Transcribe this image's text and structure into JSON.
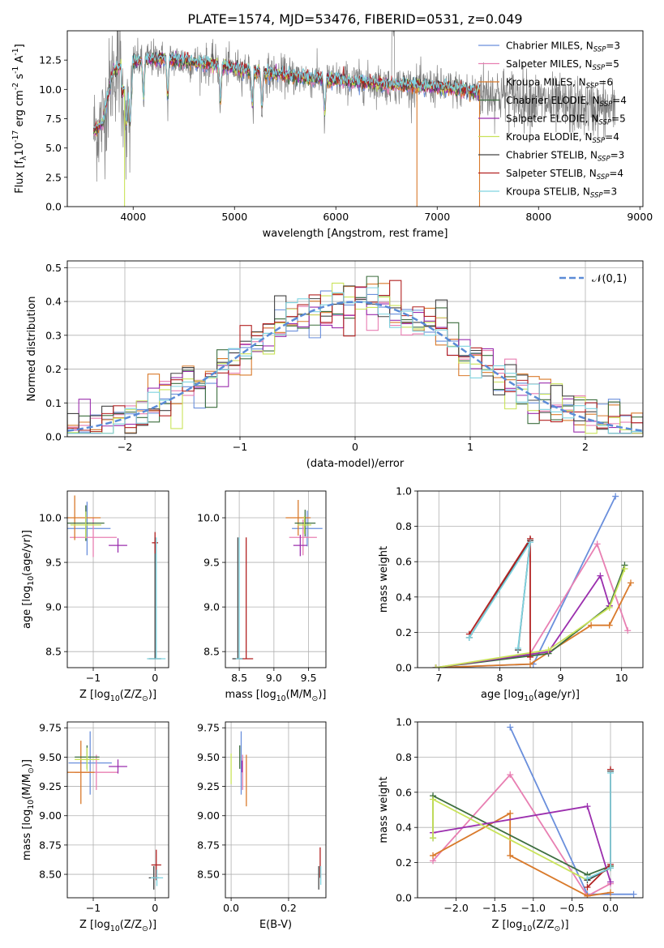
{
  "figure": {
    "title": "PLATE=1574, MJD=53476, FIBERID=0531, z=0.049"
  },
  "models": [
    {
      "name": "Chabrier MILES",
      "nssp": "3",
      "color": "#6a8fdc"
    },
    {
      "name": "Salpeter MILES",
      "nssp": "5",
      "color": "#e87fb2"
    },
    {
      "name": "Kroupa MILES",
      "nssp": "6",
      "color": "#d97a2b"
    },
    {
      "name": "Chabrier ELODIE",
      "nssp": "4",
      "color": "#3d6e3f"
    },
    {
      "name": "Salpeter ELODIE",
      "nssp": "5",
      "color": "#9b2fae"
    },
    {
      "name": "Kroupa ELODIE",
      "nssp": "4",
      "color": "#c9e35a"
    },
    {
      "name": "Chabrier STELIB",
      "nssp": "3",
      "color": "#444444"
    },
    {
      "name": "Salpeter STELIB",
      "nssp": "4",
      "color": "#b22222"
    },
    {
      "name": "Kroupa STELIB",
      "nssp": "3",
      "color": "#7fd3e0"
    }
  ],
  "chart_data": [
    {
      "id": "spectrum",
      "type": "line",
      "xlabel": "wavelength [Angstrom, rest frame]",
      "ylabel": "Flux [f$_\\lambda$10$^{-17}$ erg cm$^{-2}$ s$^{-1}$ A$^{-1}$]",
      "xlim": [
        3350,
        9030
      ],
      "ylim": [
        0,
        15
      ],
      "xticks": [
        4000,
        5000,
        6000,
        7000,
        8000,
        9000
      ],
      "yticks": [
        0.0,
        2.5,
        5.0,
        7.5,
        10.0,
        12.5
      ],
      "grid": false,
      "legend": "top-right",
      "data_color": "#808080",
      "continuum": {
        "x": [
          3610,
          3700,
          3800,
          3900,
          4000,
          4100,
          4200,
          4400,
          4600,
          4800,
          5000,
          5200,
          5500,
          5800,
          6000,
          6300,
          6600,
          6800,
          7000,
          7200,
          7400,
          7600,
          7800,
          8000,
          8200,
          8500,
          8760
        ],
        "y": [
          6.4,
          7.2,
          11.5,
          12.0,
          12.3,
          12.5,
          12.6,
          12.5,
          12.3,
          12.1,
          11.8,
          11.5,
          11.2,
          10.9,
          10.8,
          10.6,
          10.4,
          10.3,
          10.2,
          10.0,
          9.8,
          9.6,
          9.3,
          9.0,
          8.6,
          8.4,
          8.3
        ]
      },
      "model_end": 7420
    },
    {
      "id": "residuals",
      "type": "histogram",
      "xlabel": "(data-model)/error",
      "ylabel": "Normed distribution",
      "xlim": [
        -2.5,
        2.5
      ],
      "ylim": [
        0,
        0.52
      ],
      "xticks": [
        -2,
        -1,
        0,
        1,
        2
      ],
      "yticks": [
        0.0,
        0.1,
        0.2,
        0.3,
        0.4,
        0.5
      ],
      "grid": true,
      "legend": "top-right",
      "reference": {
        "label": "$\\mathcal{N}(0,1)$",
        "color": "#5b8bd6",
        "mean": 0,
        "sigma": 1
      },
      "bin_width": 0.1
    },
    {
      "id": "age_vs_Z",
      "type": "errorbar",
      "xlabel": "Z [log$_{10}$($Z/Z_\\odot$)]",
      "ylabel": "age  [log$_{10}$($age/yr$)]",
      "xlim": [
        -1.42,
        0.22
      ],
      "ylim": [
        8.32,
        10.3
      ],
      "xticks": [
        -1,
        0
      ],
      "yticks": [
        8.5,
        9.0,
        9.5,
        10.0
      ],
      "grid": true,
      "points": [
        {
          "model": 0,
          "x": -1.1,
          "y": 9.88,
          "xerr": 0.38,
          "yerr": 0.3
        },
        {
          "model": 1,
          "x": -1.0,
          "y": 9.78,
          "xerr": 0.38,
          "yerr": 0.22
        },
        {
          "model": 2,
          "x": -1.3,
          "y": 10.0,
          "xerr": 0.42,
          "yerr": 0.25
        },
        {
          "model": 3,
          "x": -1.12,
          "y": 9.94,
          "xerr": 0.3,
          "yerr": 0.2
        },
        {
          "model": 4,
          "x": -0.6,
          "y": 9.69,
          "xerr": 0.15,
          "yerr": 0.08
        },
        {
          "model": 5,
          "x": -1.12,
          "y": 9.92,
          "xerr": 0.25,
          "yerr": 0.15
        },
        {
          "model": 6,
          "x": 0.0,
          "y": 8.42,
          "xerr": 0.1,
          "yerr": 0.0
        },
        {
          "model": 7,
          "x": 0.0,
          "y": 9.72,
          "xerr": 0.05,
          "yerr": 0.12
        },
        {
          "model": 8,
          "x": 0.02,
          "y": 8.42,
          "xerr": 0.15,
          "yerr": 0.0
        }
      ]
    },
    {
      "id": "age_vs_mass",
      "type": "errorbar",
      "xlabel": "mass [log$_{10}$($M/M_\\odot$)]",
      "ylabel": "",
      "xlim": [
        8.3,
        9.75
      ],
      "ylim": [
        8.32,
        10.3
      ],
      "xticks": [
        8.5,
        9.0,
        9.5
      ],
      "yticks": [
        8.5,
        9.0,
        9.5,
        10.0
      ],
      "grid": true,
      "points": [
        {
          "model": 0,
          "x": 9.48,
          "y": 9.88,
          "xerr": 0.22,
          "yerr": 0.2
        },
        {
          "model": 1,
          "x": 9.42,
          "y": 9.78,
          "xerr": 0.2,
          "yerr": 0.2
        },
        {
          "model": 2,
          "x": 9.35,
          "y": 10.0,
          "xerr": 0.18,
          "yerr": 0.2
        },
        {
          "model": 3,
          "x": 9.45,
          "y": 9.94,
          "xerr": 0.15,
          "yerr": 0.15
        },
        {
          "model": 4,
          "x": 9.38,
          "y": 9.69,
          "xerr": 0.1,
          "yerr": 0.12
        },
        {
          "model": 5,
          "x": 9.44,
          "y": 9.92,
          "xerr": 0.1,
          "yerr": 0.1
        },
        {
          "model": 6,
          "x": 8.48,
          "y": 8.42,
          "xerr": 0.08,
          "yerr": 0.0
        },
        {
          "model": 7,
          "x": 8.6,
          "y": 8.42,
          "xerr": 0.1,
          "yerr": 0.0
        },
        {
          "model": 8,
          "x": 8.5,
          "y": 8.42,
          "xerr": 0.05,
          "yerr": 0.0
        }
      ]
    },
    {
      "id": "weight_vs_age",
      "type": "line",
      "xlabel": "age  [log$_{10}$($age/yr$)]",
      "ylabel": "mass weight",
      "xlim": [
        6.65,
        10.35
      ],
      "ylim": [
        0,
        1.0
      ],
      "xticks": [
        7,
        8,
        9,
        10
      ],
      "yticks": [
        0.0,
        0.2,
        0.4,
        0.6,
        0.8,
        1.0
      ],
      "grid": true,
      "series": [
        {
          "model": 0,
          "x": [
            6.95,
            8.55,
            9.9
          ],
          "y": [
            0.0,
            0.02,
            0.97
          ]
        },
        {
          "model": 1,
          "x": [
            6.95,
            8.5,
            9.6,
            10.1
          ],
          "y": [
            0.0,
            0.08,
            0.7,
            0.21
          ]
        },
        {
          "model": 2,
          "x": [
            6.95,
            8.5,
            9.5,
            9.8,
            10.15
          ],
          "y": [
            0.0,
            0.02,
            0.24,
            0.24,
            0.48
          ]
        },
        {
          "model": 3,
          "x": [
            6.95,
            8.8,
            9.8,
            10.05
          ],
          "y": [
            0.0,
            0.08,
            0.35,
            0.58
          ]
        },
        {
          "model": 4,
          "x": [
            6.95,
            8.8,
            9.65,
            9.8
          ],
          "y": [
            0.0,
            0.09,
            0.52,
            0.35
          ]
        },
        {
          "model": 5,
          "x": [
            6.95,
            8.8,
            9.8,
            10.05
          ],
          "y": [
            0.0,
            0.1,
            0.34,
            0.56
          ]
        },
        {
          "model": 6,
          "x": [
            7.5,
            8.5,
            8.3
          ],
          "y": [
            0.17,
            0.72,
            0.1
          ]
        },
        {
          "model": 7,
          "x": [
            7.5,
            8.5,
            8.5
          ],
          "y": [
            0.19,
            0.73,
            0.06
          ]
        },
        {
          "model": 8,
          "x": [
            7.5,
            8.5,
            8.3
          ],
          "y": [
            0.17,
            0.71,
            0.11
          ]
        }
      ]
    },
    {
      "id": "mass_vs_Z",
      "type": "errorbar",
      "xlabel": "Z [log$_{10}$($Z/Z_\\odot$)]",
      "ylabel": "mass [log$_{10}$($M/M_\\odot$)]",
      "xlim": [
        -1.42,
        0.22
      ],
      "ylim": [
        8.3,
        9.8
      ],
      "xticks": [
        -1,
        0
      ],
      "yticks": [
        8.5,
        8.75,
        9.0,
        9.25,
        9.5,
        9.75
      ],
      "grid": true,
      "points": [
        {
          "model": 0,
          "x": -1.05,
          "y": 9.45,
          "xerr": 0.35,
          "yerr": 0.27
        },
        {
          "model": 1,
          "x": -0.95,
          "y": 9.37,
          "xerr": 0.35,
          "yerr": 0.15
        },
        {
          "model": 2,
          "x": -1.2,
          "y": 9.37,
          "xerr": 0.22,
          "yerr": 0.27
        },
        {
          "model": 3,
          "x": -1.1,
          "y": 9.5,
          "xerr": 0.2,
          "yerr": 0.1
        },
        {
          "model": 4,
          "x": -0.6,
          "y": 9.42,
          "xerr": 0.15,
          "yerr": 0.06
        },
        {
          "model": 5,
          "x": -1.1,
          "y": 9.48,
          "xerr": 0.2,
          "yerr": 0.1
        },
        {
          "model": 6,
          "x": -0.02,
          "y": 8.47,
          "xerr": 0.08,
          "yerr": 0.1
        },
        {
          "model": 7,
          "x": 0.02,
          "y": 8.58,
          "xerr": 0.08,
          "yerr": 0.13
        },
        {
          "model": 8,
          "x": 0.03,
          "y": 8.47,
          "xerr": 0.1,
          "yerr": 0.07
        }
      ]
    },
    {
      "id": "mass_vs_ebv",
      "type": "errorbar",
      "xlabel": "E(B-V)",
      "ylabel": "",
      "xlim": [
        -0.02,
        0.33
      ],
      "ylim": [
        8.3,
        9.8
      ],
      "xticks": [
        0.0,
        0.2
      ],
      "yticks": [
        8.5,
        8.75,
        9.0,
        9.25,
        9.5,
        9.75
      ],
      "grid": true,
      "points": [
        {
          "model": 0,
          "x": 0.035,
          "y": 9.45,
          "xerr": 0.0,
          "yerr": 0.27
        },
        {
          "model": 1,
          "x": 0.04,
          "y": 9.37,
          "xerr": 0.0,
          "yerr": 0.15
        },
        {
          "model": 2,
          "x": 0.053,
          "y": 9.3,
          "xerr": 0.0,
          "yerr": 0.22
        },
        {
          "model": 3,
          "x": 0.03,
          "y": 9.5,
          "xerr": 0.0,
          "yerr": 0.1
        },
        {
          "model": 4,
          "x": 0.038,
          "y": 9.42,
          "xerr": 0.0,
          "yerr": 0.05
        },
        {
          "model": 5,
          "x": 0.0,
          "y": 9.4,
          "xerr": 0.0,
          "yerr": 0.13
        },
        {
          "model": 6,
          "x": 0.305,
          "y": 8.47,
          "xerr": 0.0,
          "yerr": 0.1
        },
        {
          "model": 7,
          "x": 0.31,
          "y": 8.6,
          "xerr": 0.0,
          "yerr": 0.13
        },
        {
          "model": 8,
          "x": 0.312,
          "y": 8.49,
          "xerr": 0.0,
          "yerr": 0.08
        }
      ]
    },
    {
      "id": "weight_vs_Z",
      "type": "line",
      "xlabel": "Z [log$_{10}$($Z/Z_\\odot$)]",
      "ylabel": "mass weight",
      "xlim": [
        -2.5,
        0.42
      ],
      "ylim": [
        0,
        1.0
      ],
      "xticks": [
        -2.0,
        -1.5,
        -1.0,
        -0.5,
        0.0
      ],
      "yticks": [
        0.0,
        0.2,
        0.4,
        0.6,
        0.8,
        1.0
      ],
      "grid": true,
      "series": [
        {
          "model": 0,
          "x": [
            -1.3,
            -0.3,
            0.3
          ],
          "y": [
            0.97,
            0.02,
            0.02
          ]
        },
        {
          "model": 1,
          "x": [
            -2.3,
            -1.3,
            -0.3,
            0.0
          ],
          "y": [
            0.21,
            0.7,
            0.01,
            0.08
          ]
        },
        {
          "model": 2,
          "x": [
            -2.3,
            -1.3,
            -1.3,
            -0.3,
            0.0
          ],
          "y": [
            0.24,
            0.48,
            0.24,
            0.01,
            0.03
          ]
        },
        {
          "model": 3,
          "x": [
            -2.3,
            -2.3,
            -0.3,
            0.0
          ],
          "y": [
            0.34,
            0.58,
            0.13,
            0.18
          ]
        },
        {
          "model": 4,
          "x": [
            -2.3,
            -0.3,
            0.0
          ],
          "y": [
            0.37,
            0.52,
            0.09
          ]
        },
        {
          "model": 5,
          "x": [
            -2.3,
            -2.3,
            -0.3,
            0.0
          ],
          "y": [
            0.34,
            0.56,
            0.1,
            0.17
          ]
        },
        {
          "model": 6,
          "x": [
            0.0,
            0.0,
            -0.3
          ],
          "y": [
            0.72,
            0.17,
            0.1
          ]
        },
        {
          "model": 7,
          "x": [
            0.0,
            0.0,
            -0.3
          ],
          "y": [
            0.73,
            0.19,
            0.06
          ]
        },
        {
          "model": 8,
          "x": [
            0.0,
            0.0,
            -0.3
          ],
          "y": [
            0.71,
            0.17,
            0.11
          ]
        }
      ]
    }
  ]
}
